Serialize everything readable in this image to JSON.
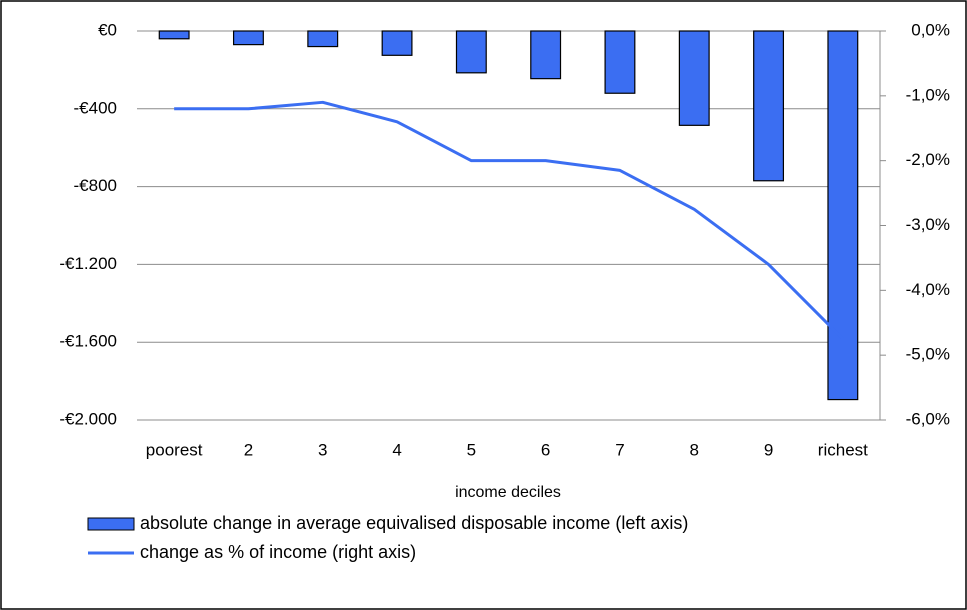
{
  "chart_data": {
    "type": "bar-line",
    "x_label": "income deciles",
    "categories": [
      "poorest",
      "2",
      "3",
      "4",
      "5",
      "6",
      "7",
      "8",
      "9",
      "richest"
    ],
    "series": [
      {
        "name": "absolute change in average equivalised disposable income (left axis)",
        "type": "bar",
        "color": "#3b6ef2",
        "axis": "y",
        "values": [
          -40,
          -70,
          -80,
          -125,
          -215,
          -245,
          -320,
          -485,
          -770,
          -1895
        ]
      },
      {
        "name": "change as % of income (right axis)",
        "type": "line",
        "color": "#3b6ef2",
        "axis": "y2",
        "values": [
          -1.2,
          -1.2,
          -1.1,
          -1.4,
          -2.0,
          -2.0,
          -2.15,
          -2.75,
          -3.6,
          -4.75
        ]
      }
    ],
    "ylim": [
      -2000,
      0
    ],
    "yticks": [
      {
        "value": 0,
        "label": "€0"
      },
      {
        "value": -400,
        "label": "-€400"
      },
      {
        "value": -800,
        "label": "-€800"
      },
      {
        "value": -1200,
        "label": "-€1.200"
      },
      {
        "value": -1600,
        "label": "-€1.600"
      },
      {
        "value": -2000,
        "label": "-€2.000"
      }
    ],
    "y2lim": [
      -6,
      0
    ],
    "y2ticks": [
      {
        "value": 0,
        "label": "0,0%"
      },
      {
        "value": -1,
        "label": "-1,0%"
      },
      {
        "value": -2,
        "label": "-2,0%"
      },
      {
        "value": -3,
        "label": "-3,0%"
      },
      {
        "value": -4,
        "label": "-4,0%"
      },
      {
        "value": -5,
        "label": "-5,0%"
      },
      {
        "value": -6,
        "label": "-6,0%"
      }
    ],
    "grid": true
  }
}
